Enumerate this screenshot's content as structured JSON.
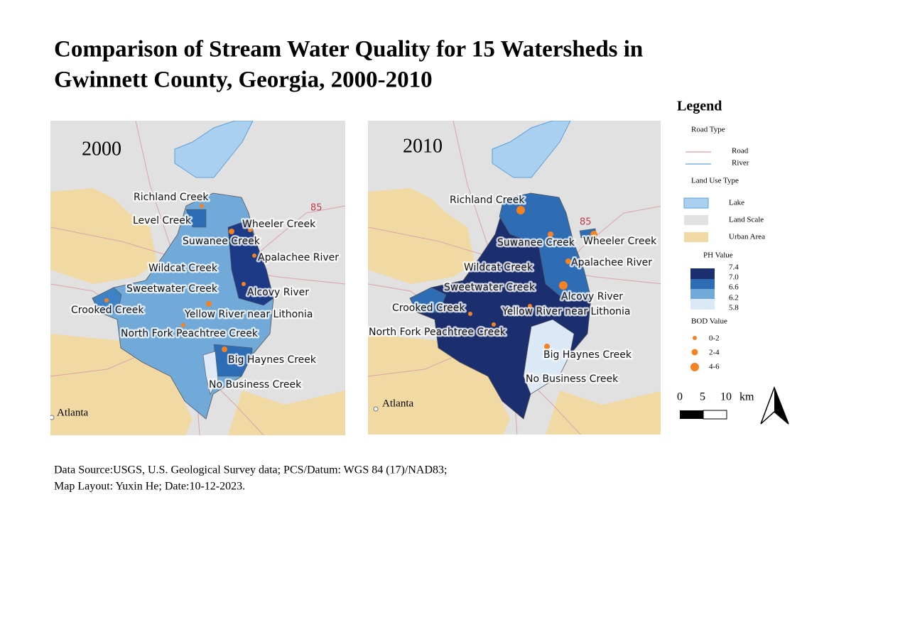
{
  "title": [
    "Comparison of Stream Water Quality for 15 Watersheds in",
    "Gwinnett County, Georgia, 2000-2010"
  ],
  "maps": [
    {
      "year": "2000",
      "road": "85",
      "city": "Atlanta",
      "labels": [
        "Richland Creek",
        "Level Creek",
        "Wheeler Creek",
        "Suwanee Creek",
        "Apalachee River",
        "Wildcat Creek",
        "Sweetwater Creek",
        "Alcovy River",
        "Crooked Creek",
        "Yellow River near Lithonia",
        "North Fork Peachtree Creek",
        "Big Haynes Creek",
        "No Business Creek"
      ]
    },
    {
      "year": "2010",
      "road": "85",
      "city": "Atlanta",
      "labels": [
        "Richland Creek",
        "Suwanee Creek",
        "Wheeler Creek",
        "Apalachee River",
        "Wildcat Creek",
        "Sweetwater Creek",
        "Alcovy River",
        "Crooked Creek",
        "Yellow River near Lithonia",
        "North Fork Peachtree Creek",
        "Big Haynes Creek",
        "No Business Creek"
      ]
    }
  ],
  "legend": {
    "title": "Legend",
    "road_heading": "Road Type",
    "road_items": [
      "Road",
      "River"
    ],
    "land_heading": "Land Use Type",
    "land_items": [
      "Lake",
      "Land Scale",
      "Urban Area"
    ],
    "ph_heading": "PH Value",
    "ph_labels": [
      "7.4",
      "7.0",
      "6.6",
      "6.2",
      "5.8"
    ],
    "bod_heading": "BOD Value",
    "bod_labels": [
      "0-2",
      "2-4",
      "4-6"
    ]
  },
  "scale": [
    "0",
    "5",
    "10",
    "km"
  ],
  "source": [
    "Data Source:USGS, U.S. Geological Survey data;  PCS/Datum: WGS 84 (17)/NAD83;",
    "Map Layout: Yuxin He;   Date:10-12-2023."
  ]
}
